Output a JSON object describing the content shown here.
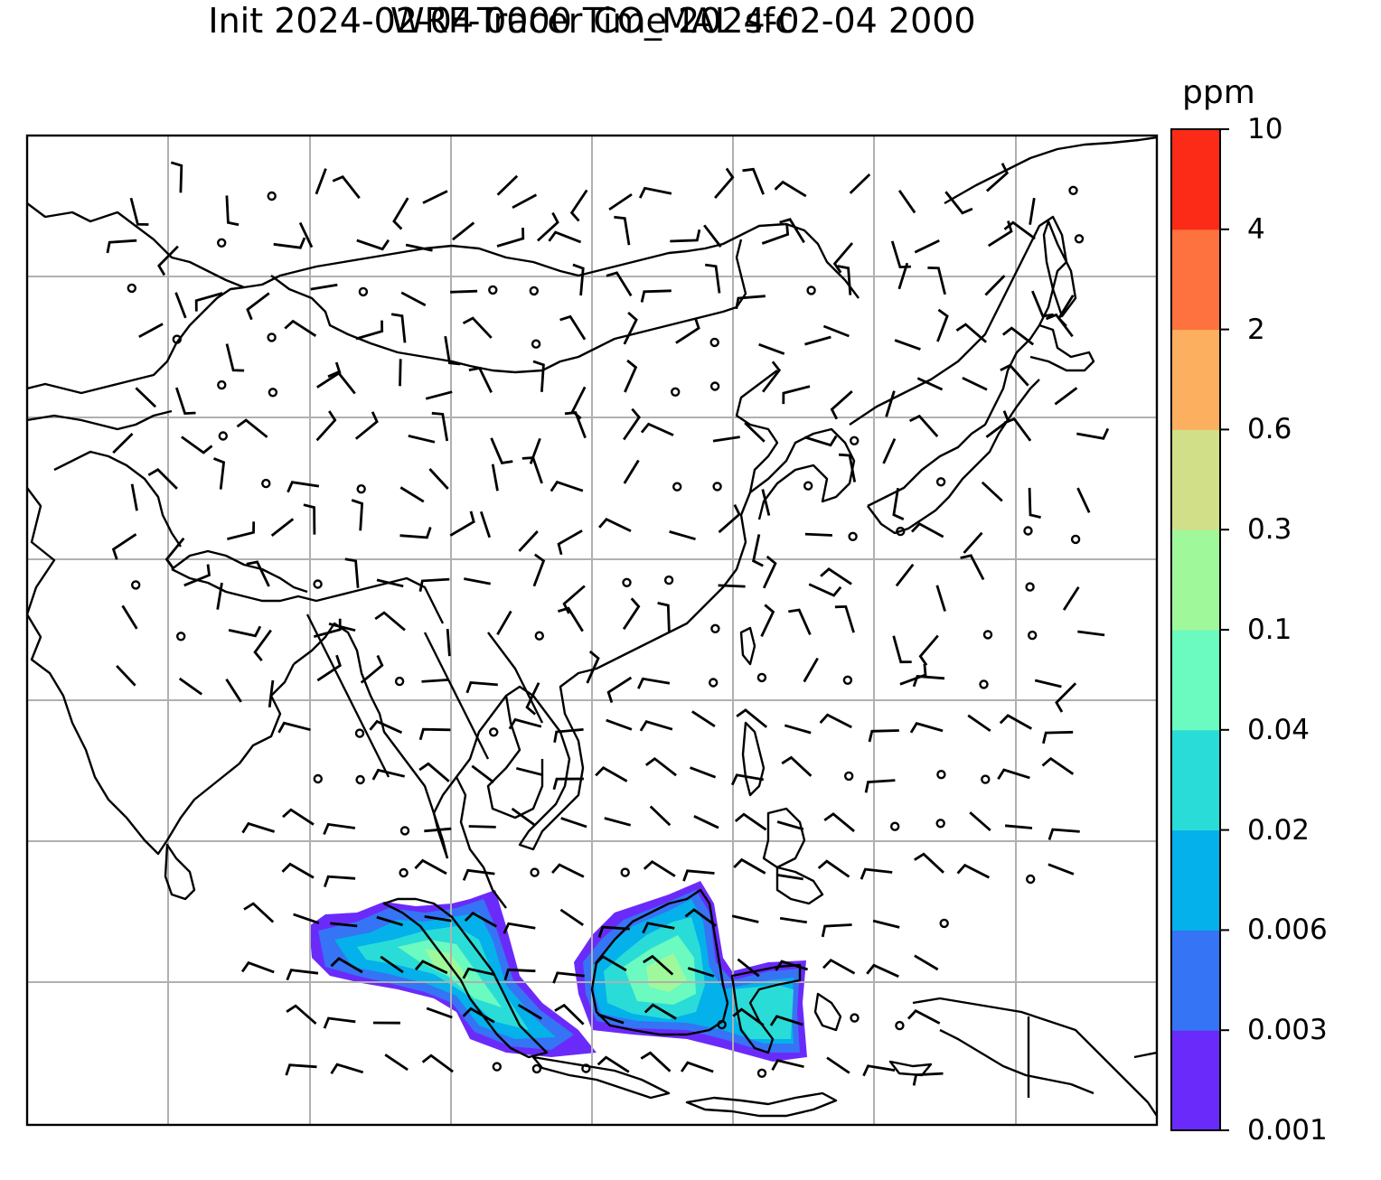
{
  "title": {
    "line1": "WRF-Tracer CO_MAL sfc",
    "line2": "Init 2024-02-04 0000 Time 2024-02-04 2000"
  },
  "colorbar": {
    "unit": "ppm",
    "ticks": [
      "10",
      "4",
      "2",
      "0.6",
      "0.3",
      "0.1",
      "0.04",
      "0.02",
      "0.006",
      "0.003",
      "0.001"
    ],
    "colors": [
      "#6a2bfa",
      "#3574f4",
      "#04b1ea",
      "#2adcd8",
      "#6bfabf",
      "#9ff99b",
      "#d1e088",
      "#fcaf5f",
      "#fd723e",
      "#fb2b17"
    ]
  },
  "map": {
    "gridline_color": "#b0b0b0",
    "coastline_color": "#000000",
    "wind_barbs": true,
    "tracer_plume_region": "Sumatra / Malay Peninsula / Borneo"
  }
}
